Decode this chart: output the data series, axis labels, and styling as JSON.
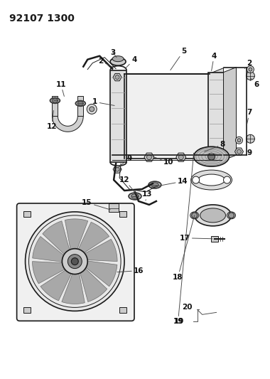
{
  "title": "92107 1300",
  "bg_color": "#ffffff",
  "line_color": "#1a1a1a",
  "gray1": "#888888",
  "gray2": "#bbbbbb",
  "gray3": "#dddddd",
  "gray4": "#eeeeee",
  "figsize": [
    3.8,
    5.33
  ],
  "dpi": 100,
  "title_fontsize": 10,
  "label_fontsize": 7.5
}
